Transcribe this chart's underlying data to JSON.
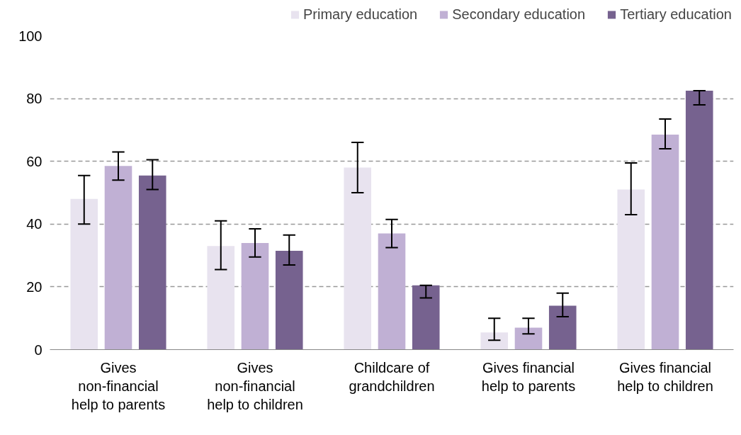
{
  "chart_data": {
    "type": "bar",
    "categories": [
      "Gives\nnon-financial\nhelp to parents",
      "Gives\nnon-financial\nhelp to children",
      "Childcare of\ngrandchildren",
      "Gives financial\nhelp to parents",
      "Gives financial\nhelp to children"
    ],
    "series": [
      {
        "name": "Primary education",
        "color": "#e8e3ef",
        "values": [
          48,
          33,
          58,
          5.5,
          51
        ],
        "errors": [
          [
            40,
            55.5
          ],
          [
            25.5,
            41
          ],
          [
            50,
            66
          ],
          [
            3,
            10
          ],
          [
            43,
            59.5
          ]
        ]
      },
      {
        "name": "Secondary education",
        "color": "#c0b0d4",
        "values": [
          58.5,
          34,
          37,
          7,
          68.5
        ],
        "errors": [
          [
            54,
            63
          ],
          [
            29.5,
            38.5
          ],
          [
            32.5,
            41.5
          ],
          [
            5,
            10
          ],
          [
            64,
            73.5
          ]
        ]
      },
      {
        "name": "Tertiary education",
        "color": "#76628f",
        "values": [
          55.5,
          31.5,
          20.5,
          14,
          82.5
        ],
        "errors": [
          [
            51,
            60.5
          ],
          [
            27,
            36.5
          ],
          [
            16.5,
            20.5
          ],
          [
            10.5,
            18
          ],
          [
            78,
            82.5
          ]
        ]
      }
    ],
    "ylim": [
      0,
      100
    ],
    "yticks": [
      0,
      20,
      40,
      60,
      80,
      100
    ],
    "grid": "y",
    "legend": "top right"
  }
}
